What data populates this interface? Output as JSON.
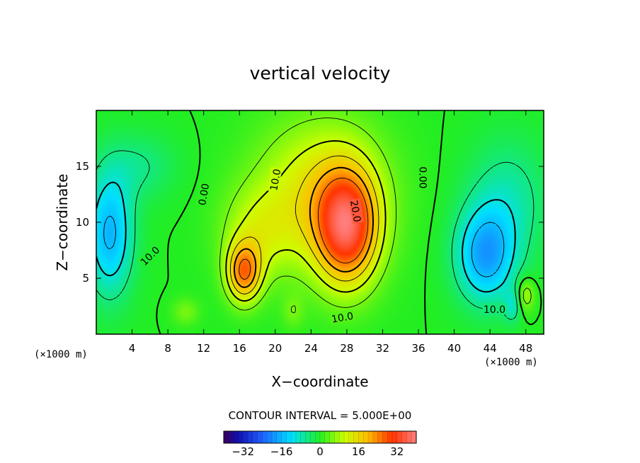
{
  "chart_data": {
    "type": "heatmap",
    "title": "vertical velocity",
    "xlabel": "X−coordinate",
    "ylabel": "Z−coordinate",
    "x_unit_label": "(×1000 m)",
    "z_unit_label": "(×1000 m)",
    "xlim": [
      0,
      50
    ],
    "ylim": [
      0,
      20
    ],
    "x_ticks": [
      4,
      8,
      12,
      16,
      20,
      24,
      28,
      32,
      36,
      40,
      44,
      48
    ],
    "y_ticks": [
      5,
      10,
      15
    ],
    "x_tick_labels": [
      "4",
      "8",
      "12",
      "16",
      "20",
      "24",
      "28",
      "32",
      "36",
      "40",
      "44",
      "48"
    ],
    "y_tick_labels": [
      "5",
      "10",
      "15"
    ],
    "contour_interval_text": "CONTOUR INTERVAL = 5.000E+00",
    "contour_labels": [
      {
        "text": "0.00",
        "x": 12.0,
        "z": 12.5,
        "angle": -80
      },
      {
        "text": "10.0",
        "x": 20.0,
        "z": 13.8,
        "angle": -80
      },
      {
        "text": "20.0",
        "x": 29.0,
        "z": 11.0,
        "angle": 80
      },
      {
        "text": "0.00",
        "x": 36.5,
        "z": 14.0,
        "angle": 90
      },
      {
        "text": "10.0",
        "x": 6.0,
        "z": 7.0,
        "angle": -45
      },
      {
        "text": "10.0",
        "x": 27.5,
        "z": 1.5,
        "angle": -10
      },
      {
        "text": "10.0",
        "x": 44.5,
        "z": 2.2,
        "angle": 0
      }
    ],
    "colorbar": {
      "min": -40,
      "max": 40,
      "tick_values": [
        -32,
        -16,
        0,
        16,
        32
      ],
      "tick_labels": [
        "−32",
        "−16",
        "0",
        "16",
        "32"
      ]
    },
    "colors": {
      "background": "#ffffff",
      "neutral_field": "#22ee22",
      "negative_extreme": "#3d0058",
      "positive_extreme": "#ff6666"
    },
    "field_features": [
      {
        "kind": "updraft-core",
        "x": 28.0,
        "z": 9.5,
        "peak_w": 30
      },
      {
        "kind": "updraft-core",
        "x": 16.5,
        "z": 5.5,
        "peak_w": 23
      },
      {
        "kind": "downdraft-core",
        "x": 1.5,
        "z": 9.0,
        "peak_w": -16
      },
      {
        "kind": "downdraft-core",
        "x": 43.5,
        "z": 7.0,
        "peak_w": -17
      }
    ]
  }
}
